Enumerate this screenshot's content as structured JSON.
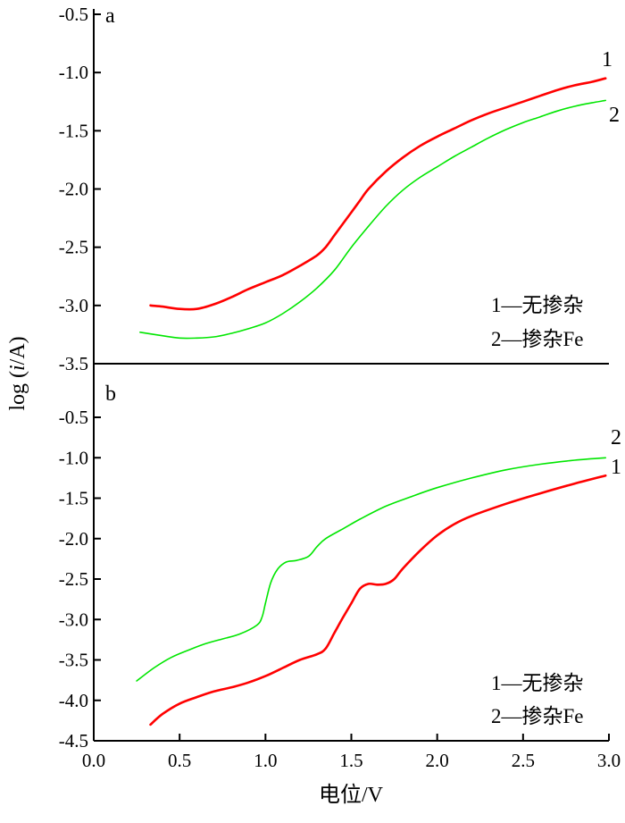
{
  "chart_data": [
    {
      "panel": "a",
      "type": "line",
      "xlim": [
        0.0,
        3.0
      ],
      "ylim": [
        -3.5,
        -0.5
      ],
      "yticks": [
        "-0.5",
        "-1.0",
        "-1.5",
        "-2.0",
        "-2.5",
        "-3.0",
        "-3.5"
      ],
      "legend": [
        "1—无掺杂",
        "2—掺杂Fe"
      ],
      "legend_position": "bottom-right",
      "series": [
        {
          "label": "1",
          "color": "#ff0000",
          "x": [
            0.33,
            0.4,
            0.5,
            0.6,
            0.7,
            0.8,
            0.9,
            1.0,
            1.1,
            1.2,
            1.3,
            1.35,
            1.4,
            1.45,
            1.5,
            1.55,
            1.6,
            1.7,
            1.8,
            1.9,
            2.0,
            2.1,
            2.2,
            2.3,
            2.4,
            2.5,
            2.6,
            2.7,
            2.8,
            2.9,
            2.98
          ],
          "y": [
            -3.0,
            -3.01,
            -3.03,
            -3.03,
            -2.99,
            -2.93,
            -2.86,
            -2.8,
            -2.74,
            -2.66,
            -2.57,
            -2.5,
            -2.4,
            -2.3,
            -2.2,
            -2.1,
            -2.0,
            -1.85,
            -1.73,
            -1.63,
            -1.55,
            -1.48,
            -1.41,
            -1.35,
            -1.3,
            -1.25,
            -1.2,
            -1.15,
            -1.11,
            -1.08,
            -1.05
          ]
        },
        {
          "label": "2",
          "color": "#00e600",
          "x": [
            0.27,
            0.4,
            0.5,
            0.6,
            0.7,
            0.8,
            0.9,
            1.0,
            1.1,
            1.2,
            1.3,
            1.4,
            1.5,
            1.6,
            1.7,
            1.8,
            1.9,
            2.0,
            2.1,
            2.2,
            2.3,
            2.4,
            2.5,
            2.6,
            2.7,
            2.8,
            2.9,
            2.98
          ],
          "y": [
            -3.23,
            -3.26,
            -3.28,
            -3.28,
            -3.27,
            -3.24,
            -3.2,
            -3.15,
            -3.07,
            -2.97,
            -2.85,
            -2.7,
            -2.5,
            -2.32,
            -2.15,
            -2.01,
            -1.9,
            -1.81,
            -1.72,
            -1.64,
            -1.56,
            -1.49,
            -1.43,
            -1.38,
            -1.33,
            -1.29,
            -1.26,
            -1.24
          ]
        }
      ]
    },
    {
      "panel": "b",
      "type": "line",
      "xlim": [
        0.0,
        3.0
      ],
      "ylim": [
        -4.5,
        -0.5
      ],
      "xticks": [
        "0.0",
        "0.5",
        "1.0",
        "1.5",
        "2.0",
        "2.5",
        "3.0"
      ],
      "yticks": [
        "-0.5",
        "-1.0",
        "-1.5",
        "-2.0",
        "-2.5",
        "-3.0",
        "-3.5",
        "-4.0",
        "-4.5"
      ],
      "legend": [
        "1—无掺杂",
        "2—掺杂Fe"
      ],
      "legend_position": "bottom-right",
      "series": [
        {
          "label": "2",
          "color": "#00e600",
          "x": [
            0.25,
            0.35,
            0.45,
            0.55,
            0.65,
            0.75,
            0.85,
            0.95,
            0.98,
            1.0,
            1.03,
            1.07,
            1.12,
            1.18,
            1.25,
            1.3,
            1.35,
            1.45,
            1.55,
            1.7,
            1.85,
            2.0,
            2.2,
            2.4,
            2.6,
            2.8,
            2.98
          ],
          "y": [
            -3.76,
            -3.6,
            -3.47,
            -3.38,
            -3.3,
            -3.24,
            -3.18,
            -3.07,
            -2.97,
            -2.8,
            -2.55,
            -2.38,
            -2.29,
            -2.27,
            -2.22,
            -2.1,
            -2.0,
            -1.88,
            -1.76,
            -1.6,
            -1.48,
            -1.37,
            -1.25,
            -1.15,
            -1.08,
            -1.03,
            -1.0
          ]
        },
        {
          "label": "1",
          "color": "#ff0000",
          "x": [
            0.33,
            0.4,
            0.5,
            0.6,
            0.7,
            0.8,
            0.9,
            1.0,
            1.1,
            1.2,
            1.3,
            1.35,
            1.4,
            1.45,
            1.5,
            1.55,
            1.6,
            1.65,
            1.7,
            1.75,
            1.8,
            1.9,
            2.0,
            2.1,
            2.2,
            2.4,
            2.6,
            2.8,
            2.98
          ],
          "y": [
            -4.3,
            -4.17,
            -4.04,
            -3.96,
            -3.89,
            -3.84,
            -3.78,
            -3.7,
            -3.6,
            -3.5,
            -3.43,
            -3.36,
            -3.17,
            -2.98,
            -2.8,
            -2.62,
            -2.56,
            -2.57,
            -2.56,
            -2.5,
            -2.37,
            -2.15,
            -1.96,
            -1.82,
            -1.72,
            -1.57,
            -1.44,
            -1.32,
            -1.22
          ]
        }
      ]
    }
  ],
  "panels": {
    "a": {
      "label": "a",
      "legend_1": "1—无掺杂",
      "legend_2": "2—掺杂Fe"
    },
    "b": {
      "label": "b",
      "legend_1": "1—无掺杂",
      "legend_2": "2—掺杂Fe"
    }
  },
  "axes": {
    "ylabel_prefix": "log (",
    "ylabel_italic": "i",
    "ylabel_suffix": "/A)",
    "xlabel": "电位/V"
  },
  "colors": {
    "curve_1": "#ff0000",
    "curve_2": "#00e600",
    "axis": "#000000"
  }
}
